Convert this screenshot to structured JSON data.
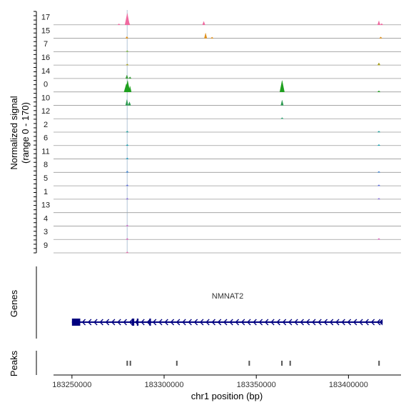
{
  "coverage": {
    "ylabel_line1": "Normalized signal",
    "ylabel_line2": "(range 0 - 170)",
    "tracks": [
      {
        "name": "17",
        "color": "#f06aa0",
        "peaks": [
          [
            183275500,
            0.06
          ],
          [
            183280000,
            1.0
          ],
          [
            183280800,
            0.25
          ],
          [
            183321500,
            0.3
          ],
          [
            183416500,
            0.35
          ],
          [
            183418000,
            0.12
          ]
        ]
      },
      {
        "name": "15",
        "color": "#e0901a",
        "peaks": [
          [
            183279800,
            0.15
          ],
          [
            183322500,
            0.45
          ],
          [
            183326000,
            0.1
          ],
          [
            183417500,
            0.12
          ]
        ]
      },
      {
        "name": "7",
        "color": "#7ab83a",
        "peaks": [
          [
            183280000,
            0.08
          ]
        ]
      },
      {
        "name": "16",
        "color": "#a8a020",
        "peaks": [
          [
            183280000,
            0.06
          ],
          [
            183416500,
            0.2
          ]
        ]
      },
      {
        "name": "14",
        "color": "#3a9a3a",
        "peaks": [
          [
            183279800,
            0.3
          ],
          [
            183281500,
            0.15
          ]
        ]
      },
      {
        "name": "0",
        "color": "#1ea01e",
        "peaks": [
          [
            183279500,
            0.7
          ],
          [
            183280200,
            1.0
          ],
          [
            183281500,
            0.5
          ],
          [
            183364000,
            1.0
          ],
          [
            183364500,
            0.4
          ],
          [
            183416500,
            0.1
          ]
        ]
      },
      {
        "name": "10",
        "color": "#2c9a50",
        "peaks": [
          [
            183279800,
            0.5
          ],
          [
            183281200,
            0.3
          ],
          [
            183364000,
            0.45
          ]
        ]
      },
      {
        "name": "12",
        "color": "#30a070",
        "peaks": [
          [
            183364000,
            0.1
          ]
        ]
      },
      {
        "name": "2",
        "color": "#20a09a",
        "peaks": [
          [
            183280000,
            0.08
          ],
          [
            183416500,
            0.1
          ]
        ]
      },
      {
        "name": "6",
        "color": "#1aa0b0",
        "peaks": [
          [
            183280000,
            0.06
          ],
          [
            183416500,
            0.06
          ]
        ]
      },
      {
        "name": "11",
        "color": "#209ac0",
        "peaks": [
          [
            183280000,
            0.05
          ]
        ]
      },
      {
        "name": "8",
        "color": "#3a80d0",
        "peaks": [
          [
            183280000,
            0.12
          ],
          [
            183416500,
            0.08
          ]
        ]
      },
      {
        "name": "5",
        "color": "#5a6ad8",
        "peaks": [
          [
            183280000,
            0.06
          ],
          [
            183416500,
            0.06
          ]
        ]
      },
      {
        "name": "1",
        "color": "#8a70d8",
        "peaks": [
          [
            183280000,
            0.08
          ],
          [
            183416500,
            0.06
          ]
        ]
      },
      {
        "name": "13",
        "color": "#b070d0",
        "peaks": []
      },
      {
        "name": "4",
        "color": "#c868c8",
        "peaks": [
          [
            183280000,
            0.04
          ]
        ]
      },
      {
        "name": "3",
        "color": "#d860b8",
        "peaks": [
          [
            183280000,
            0.06
          ],
          [
            183416500,
            0.05
          ]
        ]
      },
      {
        "name": "9",
        "color": "#e070a8",
        "peaks": [
          [
            183280000,
            0.04
          ]
        ]
      }
    ],
    "highlight_position": 183280000,
    "highlight_color": "#c9d6e3"
  },
  "genes": {
    "label": "Genes",
    "gene_name": "NMNAT2",
    "color": "#000080",
    "start": 183250000,
    "end": 183418500,
    "strand": "-",
    "exons": [
      [
        183250000,
        183254500
      ],
      [
        183282500,
        183283800
      ],
      [
        183285200,
        183285900
      ],
      [
        183292000,
        183292600
      ]
    ]
  },
  "peaks": {
    "label": "Peaks",
    "color": "#555555",
    "regions": [
      [
        183279600,
        183280300
      ],
      [
        183281300,
        183282000
      ],
      [
        183306500,
        183307200
      ],
      [
        183345800,
        183346500
      ],
      [
        183363500,
        183364200
      ],
      [
        183368000,
        183368700
      ],
      [
        183416200,
        183416900
      ]
    ]
  },
  "x_axis": {
    "label": "chr1 position (bp)",
    "min": 183240000,
    "max": 183428500,
    "ticks": [
      183250000,
      183300000,
      183350000,
      183400000
    ],
    "tick_labels": [
      "183250000",
      "183300000",
      "183350000",
      "183400000"
    ]
  }
}
